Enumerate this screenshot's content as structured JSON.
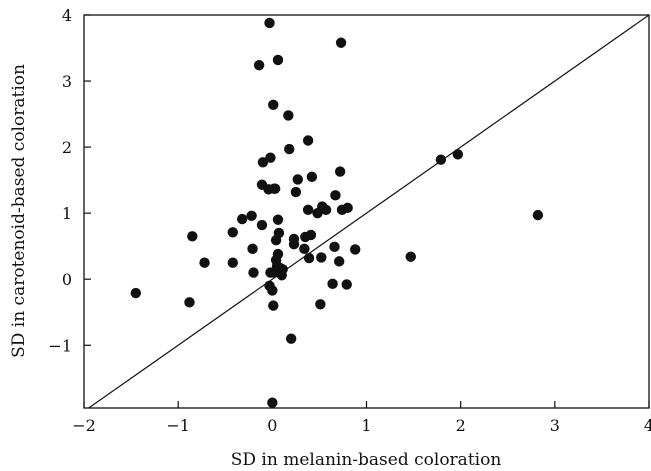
{
  "chart_data": {
    "type": "scatter",
    "xlabel": "SD in melanin-based coloration",
    "ylabel": "SD in carotenoid-based coloration",
    "xlim": [
      -2,
      4
    ],
    "ylim": [
      -1.95,
      4
    ],
    "xticks": [
      -2,
      -1,
      0,
      1,
      2,
      3,
      4
    ],
    "yticks": [
      -1,
      0,
      1,
      2,
      3,
      4
    ],
    "xtick_labels": [
      "−2",
      "−1",
      "0",
      "1",
      "2",
      "3",
      "4"
    ],
    "ytick_labels": [
      "−1",
      "0",
      "1",
      "2",
      "3",
      "4"
    ],
    "grid": false,
    "reference_line": {
      "slope": 1,
      "intercept": 0
    },
    "series": [
      {
        "x": [
          -0.03,
          0.06,
          0.73,
          -0.14,
          0.01,
          0.17,
          0.38,
          0.18,
          -0.02,
          -0.1,
          0.03,
          0.72,
          0.42,
          0.67,
          0.27,
          1.79,
          1.97,
          -0.11,
          0.02,
          -0.04,
          0.25,
          0.74,
          0.38,
          0.48,
          0.53,
          0.57,
          0.8,
          2.82,
          -0.32,
          -0.22,
          0.06,
          -0.11,
          -0.85,
          -0.42,
          0.07,
          0.23,
          0.35,
          0.41,
          0.23,
          0.34,
          0.04,
          -0.21,
          0.06,
          0.66,
          0.88,
          0.04,
          -0.72,
          -0.42,
          0.39,
          0.52,
          0.71,
          1.47,
          0.05,
          0.08,
          0.11,
          0.02,
          -0.2,
          0.1,
          -0.02,
          0.64,
          0.79,
          -0.03,
          0.0,
          -1.45,
          -0.88,
          0.01,
          0.51,
          0.2,
          0.0
        ],
        "y": [
          3.88,
          3.32,
          3.58,
          3.24,
          2.64,
          2.48,
          2.1,
          1.97,
          1.84,
          1.77,
          1.37,
          1.63,
          1.55,
          1.27,
          1.51,
          1.81,
          1.89,
          1.43,
          1.37,
          1.36,
          1.32,
          1.05,
          1.05,
          1.0,
          1.1,
          1.05,
          1.08,
          0.97,
          0.91,
          0.96,
          0.9,
          0.82,
          0.65,
          0.71,
          0.7,
          0.61,
          0.64,
          0.67,
          0.53,
          0.46,
          0.59,
          0.46,
          0.38,
          0.49,
          0.45,
          0.29,
          0.25,
          0.25,
          0.32,
          0.33,
          0.27,
          0.34,
          0.2,
          0.17,
          0.15,
          0.1,
          0.1,
          0.06,
          0.1,
          -0.07,
          -0.08,
          -0.1,
          -0.17,
          -0.21,
          -0.35,
          -0.4,
          -0.38,
          -0.9,
          -1.87
        ]
      }
    ]
  }
}
